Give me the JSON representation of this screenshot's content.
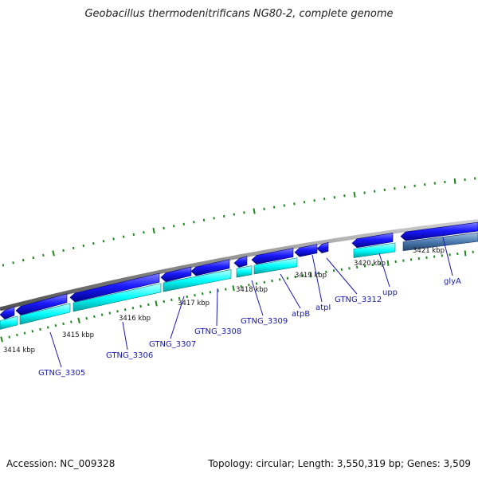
{
  "title": "Geobacillus thermodenitrificans NG80-2, complete genome",
  "footer": {
    "accession": "Accession: NC_009328",
    "summary": "Topology: circular; Length: 3,550,319 bp; Genes: 3,509"
  },
  "ruler_labels": [
    "3414 kbp",
    "3415 kbp",
    "3416 kbp",
    "3417 kbp",
    "3418 kbp",
    "3419 kbp",
    "3420 kbp",
    "3421 kbp"
  ],
  "gene_labels": [
    "GTNG_3305",
    "GTNG_3306",
    "GTNG_3307",
    "GTNG_3308",
    "GTNG_3309",
    "atpB",
    "atpI",
    "GTNG_3312",
    "upp",
    "glyA"
  ],
  "colors": {
    "gene_forward": "#1a1aff",
    "gene_reverse": "#00f0f0",
    "gene_selected": "#4a7ab0",
    "backbone": "#8a8a8a",
    "ticks": "#1e8a1e",
    "label": "#1a1ab0"
  }
}
